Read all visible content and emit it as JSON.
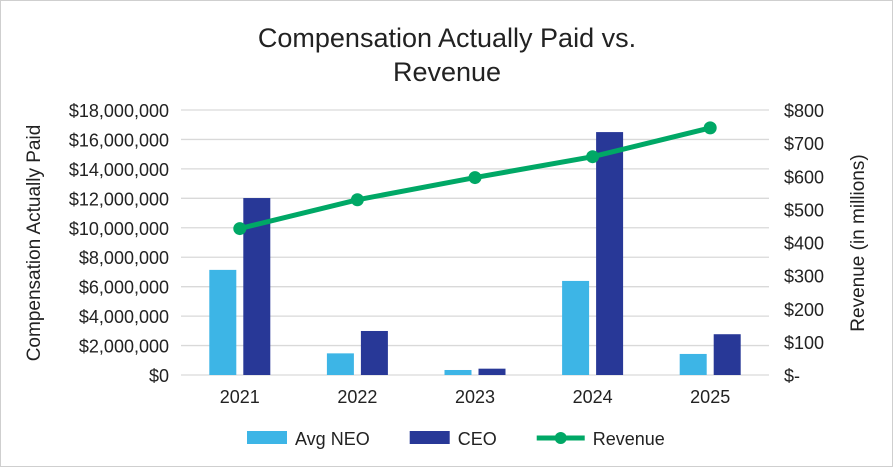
{
  "chart_data": {
    "type": "bar+line",
    "title_line1": "Compensation Actually Paid vs.",
    "title_line2": "Revenue",
    "ylabel": "Compensation Actually Paid",
    "y2label": "Revenue (in millions)",
    "categories": [
      "2021",
      "2022",
      "2023",
      "2024",
      "2025"
    ],
    "ylim": [
      0,
      18000000
    ],
    "y2lim": [
      0,
      800
    ],
    "yticks": [
      "$0",
      "$2,000,000",
      "$4,000,000",
      "$6,000,000",
      "$8,000,000",
      "$10,000,000",
      "$12,000,000",
      "$14,000,000",
      "$16,000,000",
      "$18,000,000"
    ],
    "y2ticks": [
      "$-",
      "$100",
      "$200",
      "$300",
      "$400",
      "$500",
      "$600",
      "$700",
      "$800"
    ],
    "grid": true,
    "legend_position": "bottom",
    "series": [
      {
        "name": "Avg NEO",
        "type": "bar",
        "axis": "left",
        "color": "#3db5e6",
        "values": [
          7140000,
          1470000,
          340000,
          6390000,
          1430000
        ]
      },
      {
        "name": "CEO",
        "type": "bar",
        "axis": "left",
        "color": "#283897",
        "values": [
          12020000,
          2990000,
          430000,
          16500000,
          2770000
        ]
      },
      {
        "name": "Revenue",
        "type": "line",
        "axis": "right",
        "color": "#00a866",
        "values": [
          442,
          529,
          596,
          659,
          746
        ]
      }
    ]
  }
}
